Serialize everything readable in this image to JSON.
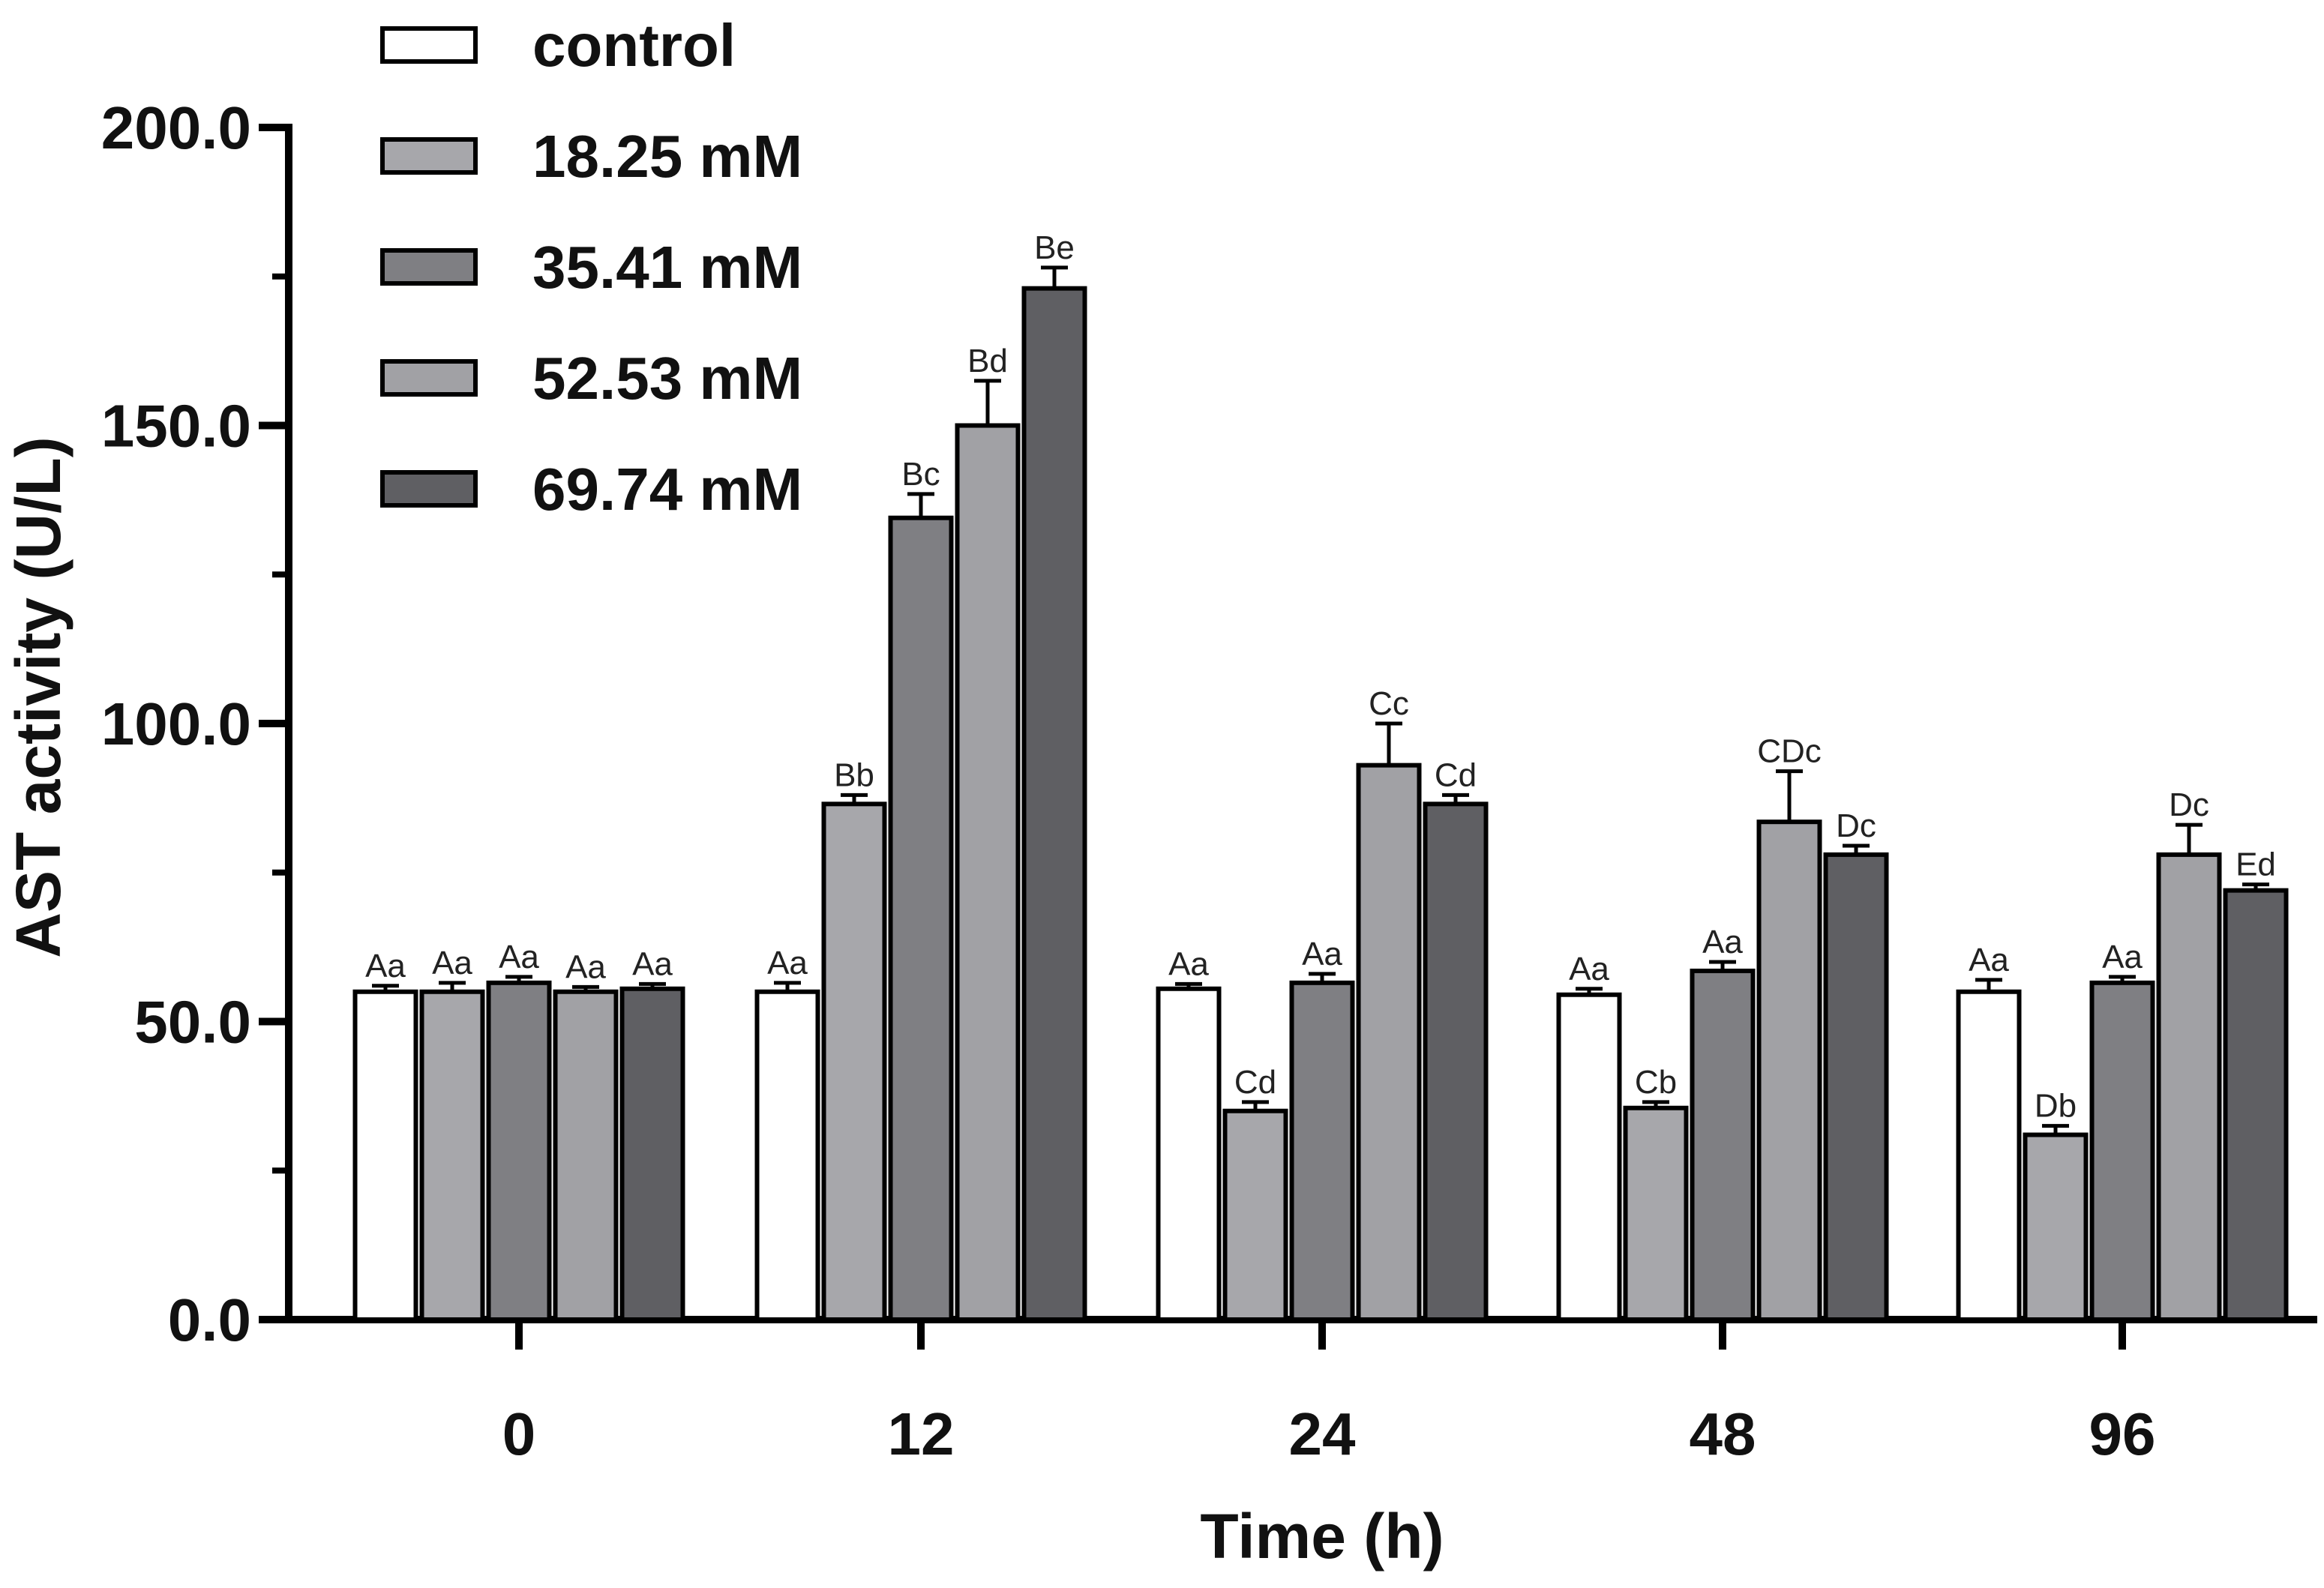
{
  "chart_data": {
    "type": "bar",
    "xlabel": "Time (h)",
    "ylabel": "AST activity (U/L)",
    "ylim": [
      0,
      200
    ],
    "yticks": [
      "0.0",
      "50.0",
      "100.0",
      "150.0",
      "200.0"
    ],
    "categories": [
      "0",
      "12",
      "24",
      "48",
      "96"
    ],
    "legend_position": "top-left",
    "series": [
      {
        "name": "control",
        "color": "#ffffff",
        "values": [
          55,
          55,
          55.5,
          54.5,
          55
        ],
        "errors": [
          1,
          1.5,
          0.8,
          1,
          2
        ],
        "labels": [
          "Aa",
          "Aa",
          "Aa",
          "Aa",
          "Aa"
        ]
      },
      {
        "name": "18.25 mM",
        "color": "#a7a7ab",
        "values": [
          55,
          86.5,
          35,
          35.5,
          31
        ],
        "errors": [
          1.5,
          1.5,
          1.5,
          1,
          1.5
        ],
        "labels": [
          "Aa",
          "Bb",
          "Cd",
          "Cb",
          "Db"
        ]
      },
      {
        "name": "35.41 mM",
        "color": "#7f7f83",
        "values": [
          56.5,
          134.5,
          56.5,
          58.5,
          56.5
        ],
        "errors": [
          1,
          4,
          1.5,
          1.5,
          1
        ],
        "labels": [
          "Aa",
          "Bc",
          "Aa",
          "Aa",
          "Aa"
        ]
      },
      {
        "name": "52.53 mM",
        "color": "#a1a1a5",
        "values": [
          55,
          150,
          93,
          83.5,
          78
        ],
        "errors": [
          0.8,
          7.5,
          7,
          8.5,
          5
        ],
        "labels": [
          "Aa",
          "Bd",
          "Cc",
          "CDc",
          "Dc"
        ]
      },
      {
        "name": "69.74 mM",
        "color": "#5f5f63",
        "values": [
          55.5,
          173,
          86.5,
          78,
          72
        ],
        "errors": [
          0.8,
          3.5,
          1.5,
          1.5,
          1
        ],
        "labels": [
          "Aa",
          "Be",
          "Cd",
          "Dc",
          "Ed"
        ]
      }
    ]
  }
}
